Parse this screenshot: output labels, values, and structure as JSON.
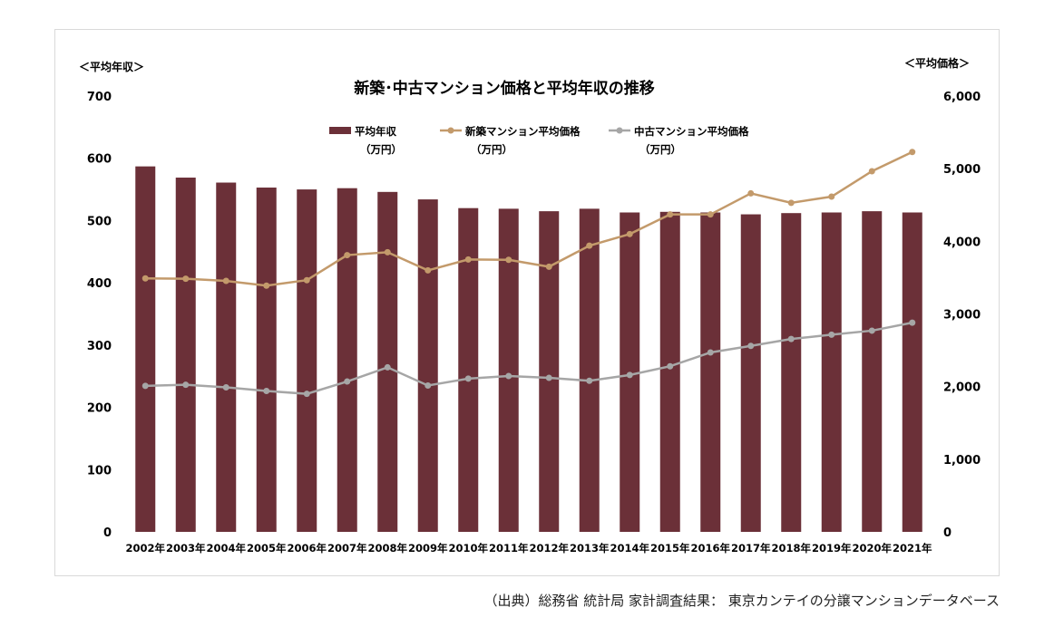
{
  "source_note": "（出典）総務省 統計局 家計調査結果： 東京カンテイの分譲マンションデータベース",
  "chart_data": {
    "type": "bar",
    "title": "新築･中古マンション価格と平均年収の推移",
    "left_axis_label": "＜平均年収＞",
    "right_axis_label": "＜平均価格＞",
    "left_ylim": [
      0,
      700
    ],
    "left_ticks": [
      "0",
      "100",
      "200",
      "300",
      "400",
      "500",
      "600",
      "700"
    ],
    "right_ylim": [
      0,
      6000
    ],
    "right_ticks": [
      "0",
      "1,000",
      "2,000",
      "3,000",
      "4,000",
      "5,000",
      "6,000"
    ],
    "categories": [
      "2002年",
      "2003年",
      "2004年",
      "2005年",
      "2006年",
      "2007年",
      "2008年",
      "2009年",
      "2010年",
      "2011年",
      "2012年",
      "2013年",
      "2014年",
      "2015年",
      "2016年",
      "2017年",
      "2018年",
      "2019年",
      "2020年",
      "2021年"
    ],
    "grid": false,
    "legend_position": "top",
    "series": [
      {
        "name": "平均年収",
        "unit": "（万円）",
        "kind": "bar",
        "axis": "left",
        "color": "#6b3038",
        "values": [
          587,
          569,
          561,
          553,
          550,
          552,
          546,
          534,
          520,
          519,
          515,
          519,
          513,
          514,
          513,
          510,
          512,
          513,
          515,
          513
        ]
      },
      {
        "name": "新築マンション平均価格",
        "unit": "（万円）",
        "kind": "line",
        "axis": "right",
        "color": "#c39a6b",
        "values": [
          3490,
          3485,
          3455,
          3390,
          3465,
          3810,
          3850,
          3600,
          3750,
          3745,
          3650,
          3940,
          4100,
          4370,
          4370,
          4660,
          4530,
          4615,
          4965,
          5230
        ]
      },
      {
        "name": "中古マンション平均価格",
        "unit": "（万円）",
        "kind": "line",
        "axis": "right",
        "color": "#a6a6a6",
        "values": [
          2010,
          2025,
          1990,
          1940,
          1900,
          2070,
          2265,
          2015,
          2110,
          2145,
          2120,
          2080,
          2160,
          2280,
          2470,
          2560,
          2655,
          2715,
          2770,
          2880
        ]
      }
    ]
  }
}
